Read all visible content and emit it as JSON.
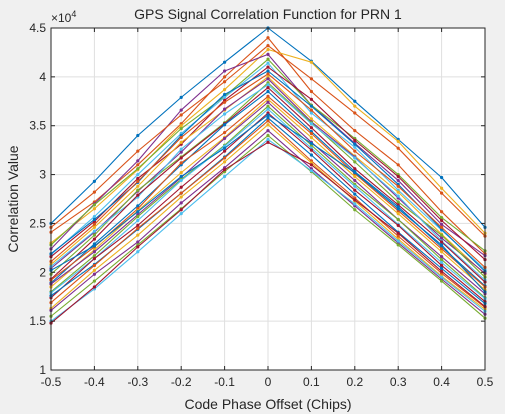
{
  "chart_data": {
    "type": "line",
    "title": "GPS Signal Correlation Function for PRN 1",
    "xlabel": "Code Phase Offset (Chips)",
    "ylabel": "Correlation Value",
    "exponent_label_base": "×10",
    "exponent_label_power": "4",
    "xlim": [
      -0.5,
      0.5
    ],
    "ylim": [
      10000,
      45000
    ],
    "grid": true,
    "x": [
      -0.5,
      -0.4,
      -0.3,
      -0.2,
      -0.1,
      0,
      0.1,
      0.2,
      0.3,
      0.4,
      0.5
    ],
    "x_tick_labels": [
      "-0.5",
      "-0.4",
      "-0.3",
      "-0.2",
      "-0.1",
      "0",
      "0.1",
      "0.2",
      "0.3",
      "0.4",
      "0.5"
    ],
    "y_ticks": [
      10000,
      15000,
      20000,
      25000,
      30000,
      35000,
      40000,
      45000
    ],
    "y_tick_labels": [
      "1",
      "1.5",
      "2",
      "2.5",
      "3",
      "3.5",
      "4",
      "4.5"
    ],
    "colors": [
      "#0072BD",
      "#D95319",
      "#EDB120",
      "#7E2F8E",
      "#77AC30",
      "#4DBEEE",
      "#A2142F"
    ],
    "series": [
      {
        "values": [
          25000,
          29300,
          34000,
          37900,
          41500,
          45000,
          41600,
          37500,
          33600,
          29700,
          24600
        ]
      },
      {
        "values": [
          24100,
          27200,
          31000,
          35200,
          40000,
          44000,
          38500,
          34500,
          31000,
          26200,
          21900
        ]
      },
      {
        "values": [
          23000,
          26500,
          30500,
          35000,
          38700,
          42800,
          41500,
          37000,
          33400,
          28600,
          24000
        ]
      },
      {
        "values": [
          22400,
          27000,
          31400,
          36600,
          40600,
          42300,
          37100,
          33200,
          29400,
          24900,
          21700
        ]
      },
      {
        "values": [
          22800,
          26900,
          30600,
          34700,
          38000,
          41800,
          37100,
          33700,
          30000,
          25600,
          22200
        ]
      },
      {
        "values": [
          21800,
          25700,
          30000,
          34200,
          37900,
          41400,
          36300,
          32800,
          28400,
          24300,
          20300
        ]
      },
      {
        "values": [
          21600,
          25200,
          29600,
          33100,
          37600,
          41000,
          37700,
          33500,
          29800,
          25300,
          21300
        ]
      },
      {
        "values": [
          21900,
          25400,
          29200,
          34000,
          38200,
          40600,
          37000,
          33100,
          29000,
          24400,
          20100
        ]
      },
      {
        "values": [
          21100,
          24900,
          29300,
          33800,
          37400,
          40300,
          36600,
          32400,
          28800,
          24600,
          20500
        ]
      },
      {
        "values": [
          20800,
          24600,
          28800,
          33300,
          36600,
          40000,
          35700,
          31900,
          28200,
          23900,
          19800
        ]
      },
      {
        "values": [
          20400,
          24100,
          28300,
          32300,
          36700,
          39800,
          35400,
          31800,
          27600,
          23500,
          19900
        ]
      },
      {
        "values": [
          19800,
          23800,
          28400,
          31800,
          35300,
          39400,
          35300,
          31300,
          27200,
          23800,
          19500
        ]
      },
      {
        "values": [
          20600,
          24200,
          27700,
          32600,
          36200,
          39200,
          35200,
          31700,
          27800,
          23200,
          19200
        ]
      },
      {
        "values": [
          19300,
          23400,
          27900,
          31700,
          35200,
          38900,
          34800,
          30600,
          26900,
          23100,
          19000
        ]
      },
      {
        "values": [
          18900,
          22900,
          26800,
          31000,
          35100,
          38500,
          34400,
          30300,
          26700,
          22600,
          18600
        ]
      },
      {
        "values": [
          19200,
          22600,
          26500,
          31200,
          34300,
          38000,
          34200,
          30100,
          26300,
          22400,
          18500
        ]
      },
      {
        "values": [
          18500,
          22300,
          26300,
          30200,
          33800,
          37700,
          33800,
          29800,
          26000,
          22100,
          18200
        ]
      },
      {
        "values": [
          18800,
          22100,
          25900,
          29700,
          33700,
          37400,
          33300,
          29400,
          25400,
          21600,
          17800
        ]
      },
      {
        "values": [
          18000,
          21700,
          25700,
          29500,
          33000,
          37000,
          33000,
          29000,
          25400,
          21300,
          17400
        ]
      },
      {
        "values": [
          17900,
          21400,
          25300,
          29400,
          32900,
          36700,
          32700,
          28800,
          24900,
          21000,
          17300
        ]
      },
      {
        "values": [
          17400,
          21400,
          24800,
          28700,
          32400,
          36300,
          32500,
          28400,
          24800,
          20700,
          17000
        ]
      },
      {
        "values": [
          17600,
          20800,
          24400,
          28100,
          31800,
          35800,
          32000,
          28000,
          24100,
          20400,
          16800
        ]
      },
      {
        "values": [
          16900,
          20700,
          24500,
          28100,
          31700,
          35500,
          31400,
          27600,
          23700,
          19900,
          16400
        ]
      },
      {
        "values": [
          16300,
          20200,
          23800,
          27700,
          31300,
          35100,
          31200,
          27300,
          23400,
          19600,
          16200
        ]
      },
      {
        "values": [
          16100,
          19800,
          23100,
          27100,
          30700,
          34500,
          30600,
          26800,
          23000,
          19300,
          15700
        ]
      },
      {
        "values": [
          15500,
          19100,
          22800,
          26500,
          30300,
          34000,
          30300,
          26400,
          22800,
          19100,
          15300
        ]
      },
      {
        "values": [
          15000,
          18300,
          22100,
          26000,
          29800,
          33600,
          30400,
          27000,
          23200,
          19500,
          16000
        ]
      },
      {
        "values": [
          14800,
          18500,
          22600,
          26400,
          30500,
          33300,
          31000,
          27400,
          24000,
          20100,
          16500
        ]
      },
      {
        "values": [
          20200,
          22700,
          26200,
          29800,
          32700,
          36100,
          33200,
          30200,
          26500,
          22800,
          18000
        ]
      },
      {
        "values": [
          24600,
          28200,
          32400,
          36100,
          39500,
          43200,
          39800,
          36300,
          32700,
          28100,
          23700
        ]
      }
    ]
  }
}
